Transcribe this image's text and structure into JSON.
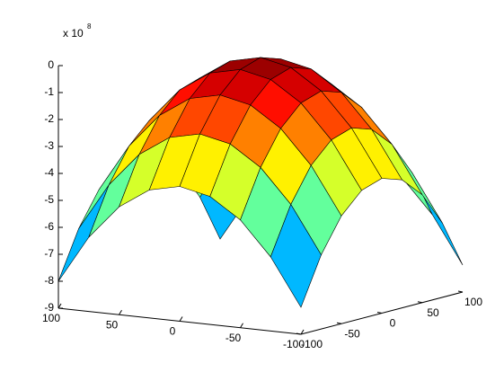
{
  "chart_data": {
    "type": "surface",
    "z_scale_label": "x 10",
    "z_scale_exponent": "8",
    "x": [
      -100,
      -75,
      -50,
      -25,
      0,
      25,
      50,
      75,
      100
    ],
    "y": [
      -100,
      -75,
      -50,
      -25,
      0,
      25,
      50,
      75,
      100
    ],
    "z": [
      [
        -8,
        -6.25,
        -5,
        -4.25,
        -4,
        -4.25,
        -5,
        -6.25,
        -8
      ],
      [
        -6.25,
        -4.5,
        -3.25,
        -2.5,
        -2.25,
        -2.5,
        -3.25,
        -4.5,
        -6.25
      ],
      [
        -5,
        -3.25,
        -2,
        -1.25,
        -1,
        -1.25,
        -2,
        -3.25,
        -5
      ],
      [
        -4.25,
        -2.5,
        -1.25,
        -0.5,
        -0.25,
        -0.5,
        -1.25,
        -2.5,
        -4.25
      ],
      [
        -4,
        -2.25,
        -1,
        -0.25,
        0,
        -0.25,
        -1,
        -2.25,
        -4
      ],
      [
        -4.25,
        -2.5,
        -1.25,
        -0.5,
        -0.25,
        -0.5,
        -1.25,
        -2.5,
        -4.25
      ],
      [
        -5,
        -3.25,
        -2,
        -1.25,
        -1,
        -1.25,
        -2,
        -3.25,
        -5
      ],
      [
        -6.25,
        -4.5,
        -3.25,
        -2.5,
        -2.25,
        -2.5,
        -3.25,
        -4.5,
        -6.25
      ],
      [
        -8,
        -6.25,
        -5,
        -4.25,
        -4,
        -4.25,
        -5,
        -6.25,
        -8
      ]
    ],
    "xlim": [
      -100,
      100
    ],
    "ylim": [
      -100,
      100
    ],
    "zlim": [
      -9,
      0
    ],
    "xticks": [
      100,
      50,
      0,
      -50,
      -100
    ],
    "yticks": [
      -100,
      -50,
      0,
      50,
      100
    ],
    "zticks": [
      0,
      -1,
      -2,
      -3,
      -4,
      -5,
      -6,
      -7,
      -8,
      -9
    ],
    "colormap": "jet",
    "edge_color": "#000000"
  }
}
